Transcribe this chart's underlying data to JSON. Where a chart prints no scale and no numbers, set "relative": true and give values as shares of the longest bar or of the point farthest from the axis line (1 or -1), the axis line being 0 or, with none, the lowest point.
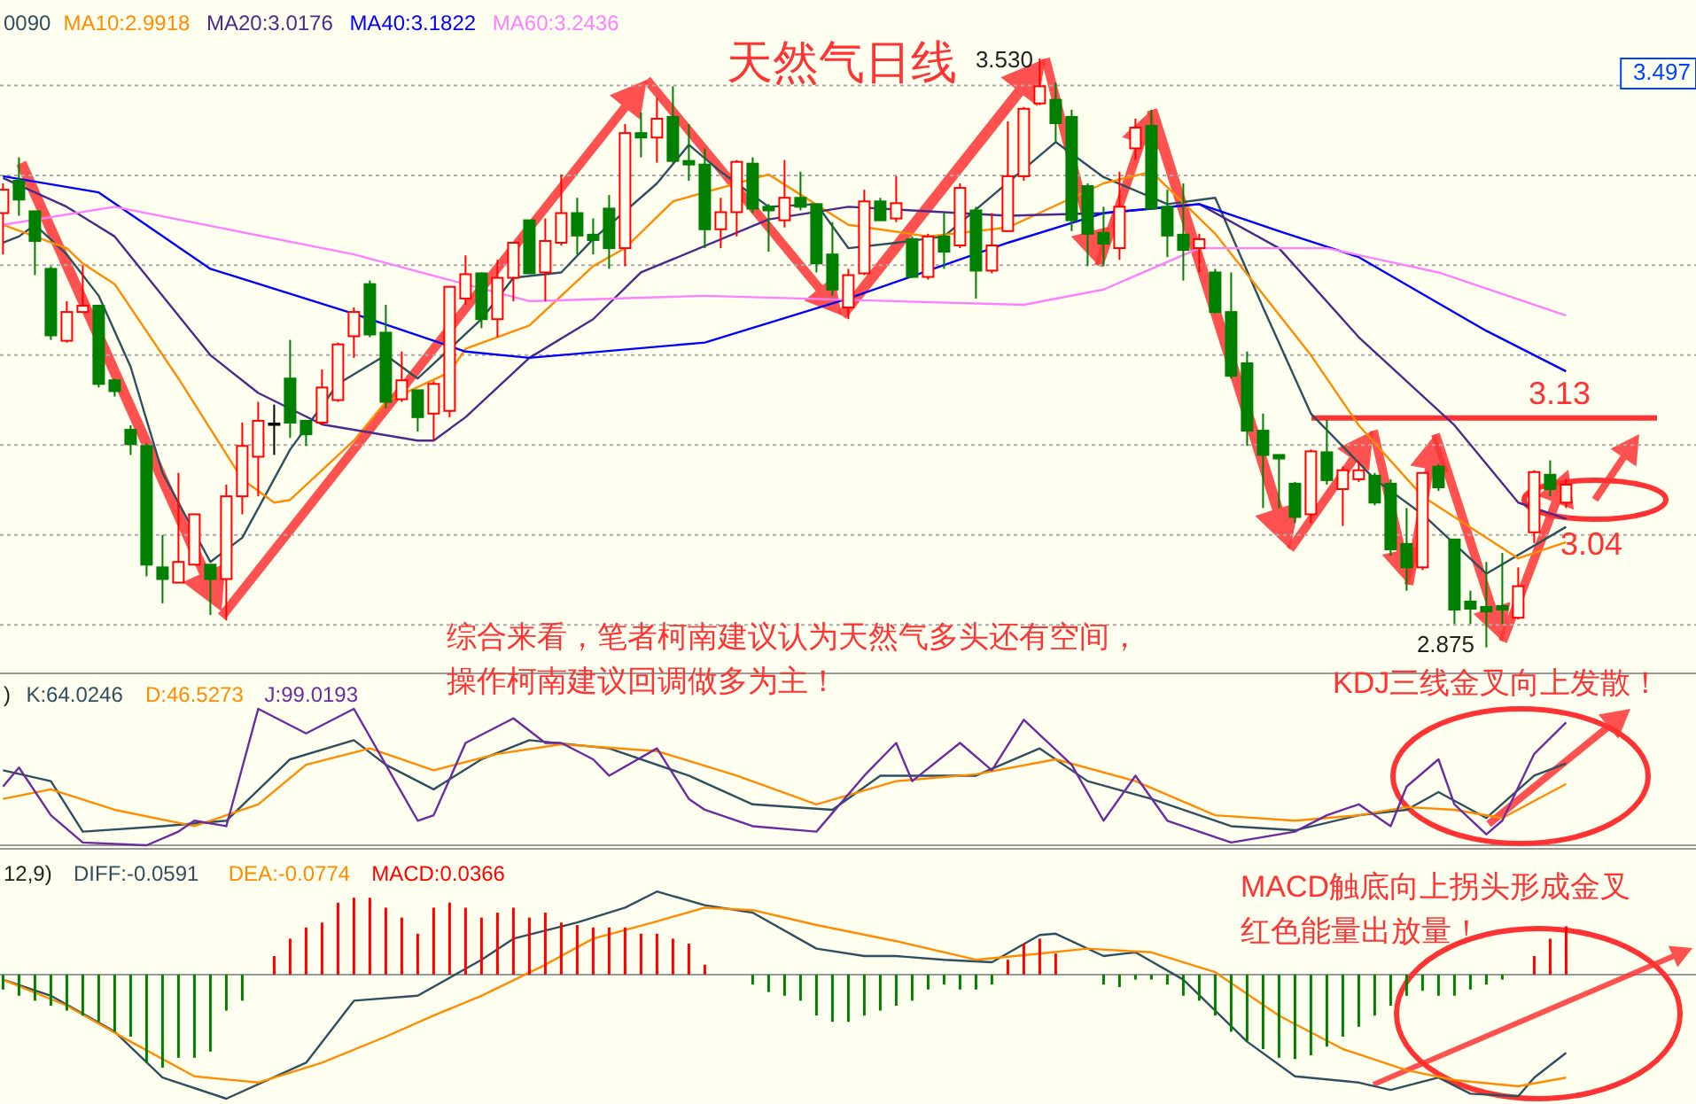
{
  "chart_data": [
    {
      "type": "candlestick",
      "title": "天然气日线",
      "categories": [
        null,
        null,
        null,
        null,
        null,
        null,
        null,
        null,
        null,
        null,
        null,
        null,
        null,
        null,
        null,
        null,
        null,
        null,
        null,
        null,
        null,
        null,
        null,
        null,
        null,
        null,
        null,
        null,
        null,
        null,
        null,
        null,
        null,
        null,
        null,
        null,
        null,
        null,
        null,
        null,
        null,
        null,
        null,
        null,
        null,
        null,
        null,
        null,
        null,
        null,
        null,
        null,
        null,
        null,
        null,
        null,
        null,
        null,
        null,
        null,
        null,
        null,
        null,
        null,
        null,
        null,
        null,
        null,
        null,
        null,
        null,
        null,
        null,
        null,
        null,
        null,
        null,
        null,
        null,
        null,
        null,
        null,
        null,
        null,
        null,
        null,
        null,
        null,
        null,
        null,
        null,
        null,
        null,
        null,
        null,
        null,
        null,
        null,
        null
      ],
      "ohlc": [
        [
          3.358,
          3.391,
          3.312,
          3.384
        ],
        [
          3.394,
          3.42,
          3.355,
          3.373
        ],
        [
          3.36,
          3.36,
          3.289,
          3.327
        ],
        [
          3.296,
          3.299,
          3.217,
          3.222
        ],
        [
          3.216,
          3.26,
          3.214,
          3.248
        ],
        [
          3.248,
          3.3,
          3.248,
          3.255
        ],
        [
          3.255,
          3.255,
          3.164,
          3.168
        ],
        [
          3.172,
          3.174,
          3.154,
          3.16
        ],
        [
          3.117,
          3.122,
          3.089,
          3.101
        ],
        [
          3.099,
          3.102,
          2.954,
          2.967
        ],
        [
          2.964,
          3.0,
          2.924,
          2.951
        ],
        [
          2.947,
          3.069,
          2.947,
          2.97
        ],
        [
          2.967,
          3.023,
          2.967,
          3.023
        ],
        [
          2.967,
          2.967,
          2.911,
          2.951
        ],
        [
          2.951,
          3.056,
          2.905,
          3.043
        ],
        [
          3.043,
          3.125,
          3.023,
          3.099
        ],
        [
          3.087,
          3.148,
          3.043,
          3.127
        ],
        [
          3.124,
          3.145,
          3.089,
          3.124
        ],
        [
          3.174,
          3.217,
          3.108,
          3.125
        ],
        [
          3.127,
          3.127,
          3.099,
          3.112
        ],
        [
          3.125,
          3.184,
          3.122,
          3.164
        ],
        [
          3.15,
          3.214,
          3.148,
          3.212
        ],
        [
          3.221,
          3.253,
          3.197,
          3.248
        ],
        [
          3.279,
          3.283,
          3.22,
          3.223
        ],
        [
          3.225,
          3.256,
          3.141,
          3.148
        ],
        [
          3.151,
          3.204,
          3.148,
          3.172
        ],
        [
          3.161,
          3.161,
          3.115,
          3.131
        ],
        [
          3.135,
          3.171,
          3.105,
          3.168
        ],
        [
          3.138,
          3.276,
          3.131,
          3.276
        ],
        [
          3.263,
          3.311,
          3.256,
          3.29
        ],
        [
          3.291,
          3.292,
          3.23,
          3.24
        ],
        [
          3.24,
          3.306,
          3.22,
          3.286
        ],
        [
          3.286,
          3.325,
          3.26,
          3.325
        ],
        [
          3.35,
          3.35,
          3.291,
          3.291
        ],
        [
          3.292,
          3.352,
          3.26,
          3.327
        ],
        [
          3.325,
          3.401,
          3.322,
          3.358
        ],
        [
          3.358,
          3.375,
          3.312,
          3.333
        ],
        [
          3.334,
          3.352,
          3.312,
          3.328
        ],
        [
          3.363,
          3.378,
          3.296,
          3.319
        ],
        [
          3.319,
          3.457,
          3.299,
          3.447
        ],
        [
          3.447,
          3.47,
          3.42,
          3.442
        ],
        [
          3.442,
          3.486,
          3.414,
          3.463
        ],
        [
          3.465,
          3.499,
          3.414,
          3.416
        ],
        [
          3.416,
          3.457,
          3.394,
          3.412
        ],
        [
          3.412,
          3.43,
          3.319,
          3.34
        ],
        [
          3.34,
          3.375,
          3.319,
          3.359
        ],
        [
          3.359,
          3.417,
          3.332,
          3.415
        ],
        [
          3.413,
          3.42,
          3.358,
          3.363
        ],
        [
          3.365,
          3.368,
          3.315,
          3.361
        ],
        [
          3.35,
          3.417,
          3.342,
          3.375
        ],
        [
          3.375,
          3.404,
          3.361,
          3.365
        ],
        [
          3.368,
          3.368,
          3.292,
          3.302
        ],
        [
          3.312,
          3.348,
          3.266,
          3.273
        ],
        [
          3.253,
          3.296,
          3.24,
          3.289
        ],
        [
          3.291,
          3.384,
          3.289,
          3.371
        ],
        [
          3.371,
          3.375,
          3.35,
          3.35
        ],
        [
          3.352,
          3.399,
          3.348,
          3.369
        ],
        [
          3.329,
          3.332,
          3.286,
          3.287
        ],
        [
          3.287,
          3.335,
          3.284,
          3.332
        ],
        [
          3.332,
          3.358,
          3.296,
          3.315
        ],
        [
          3.322,
          3.391,
          3.319,
          3.386
        ],
        [
          3.361,
          3.365,
          3.263,
          3.294
        ],
        [
          3.294,
          3.358,
          3.291,
          3.322
        ],
        [
          3.338,
          3.46,
          3.337,
          3.399
        ],
        [
          3.399,
          3.476,
          3.394,
          3.474
        ],
        [
          3.48,
          3.53,
          3.478,
          3.499
        ],
        [
          3.484,
          3.503,
          3.437,
          3.458
        ],
        [
          3.465,
          3.473,
          3.338,
          3.35
        ],
        [
          3.388,
          3.391,
          3.299,
          3.335
        ],
        [
          3.336,
          3.365,
          3.299,
          3.324
        ],
        [
          3.319,
          3.404,
          3.306,
          3.365
        ],
        [
          3.43,
          3.463,
          3.417,
          3.453
        ],
        [
          3.455,
          3.473,
          3.363,
          3.363
        ],
        [
          3.365,
          3.384,
          3.309,
          3.333
        ],
        [
          3.334,
          3.391,
          3.283,
          3.317
        ],
        [
          3.319,
          3.335,
          3.292,
          3.329
        ],
        [
          3.292,
          3.296,
          3.246,
          3.248
        ],
        [
          3.248,
          3.292,
          3.174,
          3.177
        ],
        [
          3.191,
          3.204,
          3.099,
          3.116
        ],
        [
          3.116,
          3.135,
          3.03,
          3.089
        ],
        [
          3.089,
          3.089,
          3.03,
          3.085
        ],
        [
          3.057,
          3.059,
          3.013,
          3.02
        ],
        [
          3.023,
          3.095,
          3.013,
          3.093
        ],
        [
          3.092,
          3.128,
          3.056,
          3.061
        ],
        [
          3.051,
          3.076,
          3.01,
          3.072
        ],
        [
          3.062,
          3.082,
          3.059,
          3.072
        ],
        [
          3.066,
          3.069,
          3.033,
          3.036
        ],
        [
          3.057,
          3.062,
          2.977,
          2.984
        ],
        [
          2.99,
          3.03,
          2.938,
          2.964
        ],
        [
          2.964,
          3.069,
          2.961,
          3.069
        ],
        [
          3.076,
          3.079,
          3.049,
          3.053
        ],
        [
          2.995,
          2.995,
          2.901,
          2.917
        ],
        [
          2.926,
          2.938,
          2.901,
          2.918
        ],
        [
          2.92,
          2.97,
          2.875,
          2.915
        ],
        [
          2.921,
          2.98,
          2.901,
          2.917
        ],
        [
          2.908,
          2.964,
          2.906,
          2.943
        ],
        [
          3.003,
          3.072,
          2.991,
          3.07
        ],
        [
          3.067,
          3.083,
          3.043,
          3.051
        ],
        [
          3.036,
          3.062,
          3.03,
          3.056
        ]
      ],
      "colors": [
        "#ff0000",
        "#008000",
        "#008000",
        "#008000",
        "#ff0000",
        "#ff0000",
        "#008000",
        "#008000",
        "#008000",
        "#008000",
        "#008000",
        "#ff0000",
        "#ff0000",
        "#008000",
        "#ff0000",
        "#ff0000",
        "#ff0000",
        "#000000",
        "#008000",
        "#008000",
        "#ff0000",
        "#ff0000",
        "#ff0000",
        "#008000",
        "#008000",
        "#ff0000",
        "#008000",
        "#ff0000",
        "#ff0000",
        "#ff0000",
        "#008000",
        "#ff0000",
        "#ff0000",
        "#008000",
        "#ff0000",
        "#ff0000",
        "#008000",
        "#008000",
        "#008000",
        "#ff0000",
        "#008000",
        "#ff0000",
        "#008000",
        "#008000",
        "#008000",
        "#ff0000",
        "#ff0000",
        "#008000",
        "#008000",
        "#ff0000",
        "#008000",
        "#008000",
        "#008000",
        "#ff0000",
        "#ff0000",
        "#008000",
        "#ff0000",
        "#008000",
        "#ff0000",
        "#008000",
        "#ff0000",
        "#008000",
        "#ff0000",
        "#ff0000",
        "#ff0000",
        "#ff0000",
        "#008000",
        "#008000",
        "#008000",
        "#008000",
        "#ff0000",
        "#ff0000",
        "#008000",
        "#008000",
        "#008000",
        "#ff0000",
        "#008000",
        "#008000",
        "#008000",
        "#008000",
        "#008000",
        "#008000",
        "#ff0000",
        "#008000",
        "#ff0000",
        "#ff0000",
        "#008000",
        "#008000",
        "#008000",
        "#ff0000",
        "#008000",
        "#008000",
        "#008000",
        "#008000",
        "#008000",
        "#ff0000",
        "#ff0000",
        "#008000",
        "#ff0000"
      ],
      "series": [
        {
          "name": "0090",
          "type": "line",
          "color": "#2f4f5f",
          "values": [
            3.325,
            3.332,
            3.345,
            null,
            3.312,
            null,
            3.266,
            null,
            3.187,
            null,
            3.069,
            null,
            null,
            2.97,
            null,
            2.997,
            null,
            null,
            3.095,
            null,
            null,
            3.168,
            null,
            null,
            3.2,
            null,
            3.174,
            null,
            null,
            null,
            3.24,
            null,
            3.286,
            null,
            null,
            3.292,
            null,
            3.329,
            null,
            null,
            null,
            3.391,
            null,
            3.434,
            null,
            3.404,
            null,
            null,
            3.365,
            null,
            null,
            3.368,
            null,
            3.319,
            null,
            null,
            3.325,
            null,
            null,
            3.332,
            null,
            null,
            null,
            null,
            null,
            null,
            3.437,
            null,
            null,
            3.398,
            null,
            null,
            null,
            3.368,
            null,
            null,
            3.375,
            null,
            null,
            3.253,
            null,
            null,
            3.135,
            null,
            null,
            null,
            3.062,
            null,
            null,
            3.023,
            null,
            null,
            null,
            2.957,
            null,
            null,
            null,
            null,
            3.009
          ]
        },
        {
          "name": "MA10:2.9918",
          "type": "line",
          "color": "#ff8c00",
          "values": [
            3.345,
            null,
            null,
            null,
            3.319,
            3.302,
            null,
            3.279,
            null,
            null,
            null,
            3.174,
            null,
            null,
            null,
            3.062,
            null,
            3.036,
            3.039,
            null,
            null,
            null,
            3.105,
            null,
            3.148,
            null,
            null,
            null,
            3.181,
            3.207,
            null,
            null,
            null,
            3.233,
            null,
            null,
            null,
            3.299,
            null,
            3.319,
            null,
            null,
            3.371,
            null,
            null,
            null,
            null,
            null,
            3.401,
            null,
            null,
            null,
            null,
            3.345,
            null,
            null,
            null,
            null,
            3.332,
            null,
            null,
            null,
            null,
            3.342,
            null,
            null,
            null,
            null,
            null,
            3.391,
            null,
            null,
            3.404,
            null,
            null,
            null,
            3.335,
            null,
            null,
            null,
            null,
            null,
            3.2,
            null,
            null,
            3.122,
            null,
            null,
            null,
            3.043,
            null,
            null,
            null,
            null,
            null,
            2.974,
            null,
            null,
            2.992
          ]
        },
        {
          "name": "MA20:3.0176",
          "type": "line",
          "color": "#4b2a8a",
          "values": [
            3.397,
            null,
            null,
            null,
            3.365,
            null,
            null,
            3.332,
            null,
            null,
            null,
            null,
            null,
            3.2,
            null,
            null,
            3.158,
            null,
            null,
            null,
            3.123,
            null,
            null,
            null,
            null,
            null,
            3.105,
            3.105,
            null,
            3.131,
            null,
            null,
            null,
            3.197,
            null,
            null,
            null,
            3.24,
            null,
            null,
            3.292,
            null,
            null,
            null,
            null,
            null,
            null,
            null,
            3.351,
            null,
            null,
            null,
            null,
            3.365,
            null,
            null,
            null,
            null,
            null,
            null,
            null,
            null,
            null,
            3.355,
            null,
            null,
            null,
            null,
            null,
            3.358,
            null,
            null,
            null,
            null,
            null,
            3.368,
            null,
            null,
            null,
            null,
            3.319,
            null,
            null,
            null,
            null,
            3.22,
            null,
            null,
            null,
            null,
            null,
            3.122,
            null,
            null,
            null,
            3.036,
            null,
            null,
            3.018
          ]
        },
        {
          "name": "MA40:3.1822",
          "type": "line",
          "color": "#0000ff",
          "values": [
            3.399,
            null,
            null,
            null,
            null,
            null,
            3.381,
            null,
            null,
            null,
            null,
            null,
            null,
            3.296,
            null,
            null,
            null,
            null,
            null,
            null,
            null,
            null,
            3.246,
            null,
            null,
            null,
            null,
            null,
            null,
            3.204,
            null,
            null,
            null,
            3.197,
            null,
            null,
            null,
            null,
            null,
            null,
            null,
            null,
            null,
            null,
            3.214,
            null,
            null,
            null,
            null,
            null,
            null,
            null,
            null,
            3.263,
            null,
            null,
            null,
            null,
            null,
            null,
            null,
            null,
            null,
            3.325,
            null,
            null,
            null,
            null,
            null,
            3.358,
            null,
            null,
            null,
            null,
            null,
            3.368,
            null,
            null,
            null,
            null,
            3.338,
            null,
            null,
            null,
            null,
            3.309,
            null,
            null,
            null,
            null,
            null,
            null,
            null,
            3.227,
            null,
            null,
            null,
            null,
            3.182
          ]
        },
        {
          "name": "MA60:3.2436",
          "type": "line",
          "color": "#ff80ff",
          "values": [
            3.345,
            null,
            null,
            null,
            null,
            null,
            null,
            3.365,
            null,
            null,
            null,
            null,
            null,
            null,
            null,
            null,
            null,
            null,
            null,
            null,
            null,
            null,
            3.312,
            null,
            null,
            null,
            null,
            null,
            null,
            null,
            null,
            null,
            null,
            3.26,
            null,
            null,
            null,
            null,
            null,
            null,
            null,
            null,
            null,
            null,
            3.266,
            null,
            null,
            null,
            null,
            null,
            null,
            null,
            null,
            null,
            null,
            null,
            null,
            null,
            null,
            null,
            null,
            null,
            null,
            null,
            3.256,
            null,
            null,
            null,
            null,
            3.273,
            null,
            null,
            null,
            null,
            null,
            3.319,
            null,
            null,
            null,
            null,
            null,
            null,
            null,
            3.319,
            null,
            null,
            null,
            null,
            null,
            null,
            3.292,
            null,
            null,
            null,
            null,
            null,
            null,
            null,
            3.244
          ]
        }
      ],
      "ylim": [
        2.85,
        3.595
      ],
      "yticks": [
        {
          "value": 2.9,
          "label": null
        },
        {
          "value": 3.0,
          "label": null
        },
        {
          "value": 3.1,
          "label": null
        },
        {
          "value": 3.2,
          "label": null
        },
        {
          "value": 3.3,
          "label": null
        },
        {
          "value": 3.4,
          "label": null
        },
        {
          "value": 3.5,
          "label": null
        }
      ],
      "grid": "y",
      "legend": "top left",
      "ref_lines": [
        {
          "axis": "y",
          "value": 3.13,
          "label": "3.13",
          "color": "#ff3333"
        }
      ],
      "annotations": [
        "综合来看，笔者柯南建议认为天然气多头还有空间，",
        "操作柯南建议回调做多为主！",
        "3.04",
        "3.530",
        "2.875",
        "3.497"
      ]
    },
    {
      "type": "line",
      "relative": true,
      "categories": [
        null,
        null,
        null,
        null,
        null,
        null,
        null,
        null,
        null,
        null,
        null,
        null,
        null,
        null,
        null,
        null,
        null,
        null,
        null,
        null,
        null,
        null,
        null,
        null,
        null,
        null,
        null,
        null,
        null,
        null,
        null,
        null,
        null,
        null,
        null,
        null,
        null,
        null,
        null,
        null,
        null,
        null,
        null,
        null,
        null,
        null,
        null,
        null,
        null,
        null,
        null,
        null,
        null,
        null,
        null,
        null,
        null,
        null,
        null,
        null,
        null,
        null,
        null,
        null,
        null,
        null,
        null,
        null,
        null,
        null,
        null,
        null,
        null,
        null,
        null,
        null,
        null,
        null,
        null,
        null,
        null,
        null,
        null,
        null,
        null,
        null,
        null,
        null,
        null,
        null,
        null,
        null,
        null,
        null,
        null,
        null,
        null,
        null,
        null
      ],
      "legend_title": ")",
      "series": [
        {
          "name": "K:64.0246",
          "color": "#2f4f5f",
          "values": [
            0.55,
            null,
            null,
            0.47,
            null,
            0.1,
            null,
            null,
            null,
            null,
            0.14,
            null,
            null,
            null,
            0.18,
            null,
            null,
            null,
            0.63,
            null,
            null,
            null,
            0.77,
            null,
            0.59,
            null,
            null,
            0.41,
            null,
            null,
            0.63,
            null,
            null,
            0.77,
            null,
            null,
            null,
            null,
            0.71,
            null,
            null,
            null,
            null,
            0.51,
            null,
            null,
            null,
            0.3,
            null,
            null,
            null,
            null,
            0.26,
            null,
            null,
            0.51,
            null,
            null,
            0.51,
            null,
            null,
            0.51,
            null,
            null,
            null,
            0.71,
            null,
            null,
            0.47,
            null,
            null,
            null,
            0.34,
            null,
            null,
            null,
            null,
            0.14,
            null,
            null,
            null,
            0.11,
            null,
            null,
            null,
            0.22,
            null,
            null,
            0.26,
            null,
            0.39,
            null,
            null,
            0.2,
            null,
            null,
            0.51,
            null,
            0.6
          ]
        },
        {
          "name": "D:46.5273",
          "color": "#ff8c00",
          "values": [
            0.34,
            null,
            null,
            0.41,
            null,
            null,
            null,
            0.26,
            null,
            null,
            null,
            null,
            0.14,
            null,
            null,
            null,
            0.3,
            null,
            null,
            0.59,
            null,
            null,
            null,
            0.71,
            null,
            null,
            null,
            0.55,
            null,
            null,
            null,
            0.67,
            null,
            null,
            null,
            0.74,
            null,
            null,
            null,
            null,
            null,
            0.69,
            null,
            null,
            null,
            null,
            0.51,
            null,
            null,
            null,
            null,
            0.3,
            null,
            null,
            null,
            null,
            0.47,
            null,
            null,
            null,
            null,
            0.52,
            null,
            null,
            null,
            null,
            0.63,
            null,
            null,
            null,
            null,
            0.47,
            null,
            null,
            null,
            null,
            0.22,
            null,
            null,
            null,
            null,
            0.18,
            null,
            null,
            null,
            0.22,
            null,
            null,
            0.28,
            null,
            null,
            0.26,
            null,
            null,
            0.2,
            null,
            null,
            null,
            0.45
          ]
        },
        {
          "name": "J:99.0193",
          "color": "#6a2ca0",
          "values": [
            0.43,
            0.57,
            null,
            0.22,
            null,
            0.02,
            null,
            null,
            null,
            0.0,
            null,
            0.1,
            0.18,
            null,
            0.14,
            null,
            1.0,
            null,
            null,
            0.82,
            null,
            null,
            1.0,
            null,
            0.59,
            null,
            0.18,
            0.22,
            null,
            0.75,
            null,
            null,
            0.93,
            null,
            0.75,
            0.75,
            null,
            0.63,
            0.51,
            null,
            null,
            0.71,
            null,
            0.34,
            0.26,
            null,
            null,
            0.14,
            null,
            null,
            null,
            0.1,
            null,
            null,
            0.51,
            null,
            0.75,
            0.47,
            null,
            null,
            0.75,
            null,
            0.55,
            null,
            0.92,
            null,
            null,
            0.59,
            null,
            0.18,
            null,
            0.51,
            null,
            0.18,
            null,
            null,
            null,
            0.02,
            null,
            null,
            null,
            0.1,
            null,
            0.22,
            null,
            0.3,
            null,
            0.14,
            0.43,
            null,
            0.63,
            0.3,
            null,
            0.08,
            0.18,
            null,
            0.67,
            null,
            0.9
          ]
        }
      ],
      "annotations": [
        "KDJ三线金叉向上发散！"
      ]
    },
    {
      "type": "line",
      "relative": true,
      "categories": [
        null,
        null,
        null,
        null,
        null,
        null,
        null,
        null,
        null,
        null,
        null,
        null,
        null,
        null,
        null,
        null,
        null,
        null,
        null,
        null,
        null,
        null,
        null,
        null,
        null,
        null,
        null,
        null,
        null,
        null,
        null,
        null,
        null,
        null,
        null,
        null,
        null,
        null,
        null,
        null,
        null,
        null,
        null,
        null,
        null,
        null,
        null,
        null,
        null,
        null,
        null,
        null,
        null,
        null,
        null,
        null,
        null,
        null,
        null,
        null,
        null,
        null,
        null,
        null,
        null,
        null,
        null,
        null,
        null,
        null,
        null,
        null,
        null,
        null,
        null,
        null,
        null,
        null,
        null,
        null,
        null,
        null,
        null,
        null,
        null,
        null,
        null,
        null,
        null,
        null,
        null,
        null,
        null,
        null,
        null,
        null,
        null,
        null,
        null
      ],
      "legend_title": "12,9)",
      "series": [
        {
          "name": "DIFF:-0.0591",
          "color": "#2f4f5f",
          "values": [
            -0.04,
            null,
            null,
            -0.17,
            null,
            null,
            null,
            -0.46,
            null,
            null,
            -0.83,
            null,
            null,
            null,
            -1,
            null,
            null,
            null,
            null,
            -0.71,
            null,
            null,
            -0.21,
            null,
            null,
            null,
            -0.17,
            null,
            null,
            null,
            0.12,
            null,
            0.29,
            null,
            null,
            null,
            0.42,
            null,
            null,
            0.54,
            null,
            0.67,
            null,
            null,
            0.56,
            null,
            null,
            0.5,
            null,
            null,
            null,
            0.21,
            null,
            null,
            0.15,
            null,
            0.15,
            null,
            null,
            0.12,
            null,
            null,
            0.1,
            null,
            null,
            0.32,
            0.33,
            null,
            null,
            0.15,
            null,
            0.18,
            null,
            null,
            -0.04,
            null,
            null,
            null,
            -0.54,
            null,
            null,
            -0.82,
            null,
            null,
            null,
            -0.87,
            null,
            -0.93,
            null,
            null,
            -0.83,
            null,
            -0.96,
            null,
            null,
            -0.98,
            -0.83,
            null,
            -0.63
          ]
        },
        {
          "name": "DEA:-0.0774",
          "color": "#ff8c00",
          "values": [
            -0.04,
            null,
            null,
            null,
            -0.25,
            null,
            null,
            null,
            -0.54,
            null,
            null,
            null,
            -0.82,
            null,
            null,
            null,
            -0.87,
            null,
            null,
            null,
            -0.71,
            null,
            null,
            null,
            -0.5,
            null,
            null,
            -0.33,
            null,
            null,
            -0.17,
            null,
            null,
            null,
            0.08,
            null,
            null,
            0.29,
            null,
            null,
            null,
            0.43,
            null,
            null,
            0.54,
            null,
            null,
            0.52,
            null,
            null,
            null,
            0.4,
            null,
            null,
            null,
            null,
            0.27,
            null,
            null,
            null,
            null,
            0.12,
            null,
            null,
            null,
            0.17,
            null,
            null,
            0.21,
            null,
            null,
            null,
            0.18,
            null,
            null,
            null,
            0.02,
            null,
            null,
            null,
            -0.33,
            null,
            null,
            null,
            -0.6,
            null,
            null,
            null,
            -0.77,
            null,
            null,
            -0.85,
            null,
            null,
            null,
            -0.9,
            null,
            null,
            -0.83
          ]
        },
        {
          "name": "MACD:0.0366",
          "type": "bar",
          "values": [
            -0.12,
            -0.17,
            -0.21,
            -0.25,
            -0.29,
            -0.33,
            -0.38,
            -0.46,
            -0.5,
            -0.71,
            -0.75,
            -0.67,
            -0.67,
            -0.62,
            -0.29,
            -0.21,
            null,
            0.15,
            0.29,
            0.38,
            0.42,
            0.58,
            0.62,
            0.62,
            0.54,
            0.46,
            0.33,
            0.54,
            0.58,
            0.54,
            0.46,
            0.5,
            0.54,
            0.46,
            0.5,
            0.42,
            0.4,
            0.38,
            0.38,
            0.38,
            0.33,
            0.33,
            0.29,
            0.25,
            0.08,
            null,
            null,
            -0.08,
            -0.14,
            -0.17,
            -0.21,
            -0.33,
            -0.38,
            -0.38,
            -0.33,
            -0.29,
            -0.25,
            -0.21,
            -0.12,
            -0.08,
            -0.12,
            -0.12,
            -0.08,
            0.12,
            0.25,
            0.29,
            0.17,
            null,
            null,
            -0.08,
            -0.1,
            -0.04,
            -0.04,
            -0.08,
            -0.17,
            -0.21,
            -0.33,
            -0.46,
            -0.54,
            -0.6,
            -0.67,
            -0.68,
            -0.65,
            -0.58,
            -0.5,
            -0.42,
            -0.33,
            -0.25,
            -0.17,
            -0.13,
            -0.17,
            -0.17,
            -0.12,
            -0.08,
            -0.04,
            null,
            0.15,
            0.29,
            0.39
          ],
          "colors": [
            "#008000",
            "#008000",
            "#008000",
            "#008000",
            "#008000",
            "#008000",
            "#008000",
            "#008000",
            "#008000",
            "#008000",
            "#008000",
            "#008000",
            "#008000",
            "#008000",
            "#008000",
            "#008000",
            "#008000",
            "#ff0000",
            "#ff0000",
            "#ff0000",
            "#ff0000",
            "#ff0000",
            "#ff0000",
            "#ff0000",
            "#ff0000",
            "#ff0000",
            "#ff0000",
            "#ff0000",
            "#ff0000",
            "#ff0000",
            "#ff0000",
            "#ff0000",
            "#ff0000",
            "#ff0000",
            "#ff0000",
            "#ff0000",
            "#ff0000",
            "#ff0000",
            "#ff0000",
            "#ff0000",
            "#ff0000",
            "#ff0000",
            "#ff0000",
            "#ff0000",
            "#ff0000",
            "#ff0000",
            "#008000",
            "#008000",
            "#008000",
            "#008000",
            "#008000",
            "#008000",
            "#008000",
            "#008000",
            "#008000",
            "#008000",
            "#008000",
            "#008000",
            "#008000",
            "#008000",
            "#008000",
            "#008000",
            "#008000",
            "#ff0000",
            "#ff0000",
            "#ff0000",
            "#ff0000",
            "#ff0000",
            "#008000",
            "#008000",
            "#008000",
            "#008000",
            "#008000",
            "#008000",
            "#008000",
            "#008000",
            "#008000",
            "#008000",
            "#008000",
            "#008000",
            "#008000",
            "#008000",
            "#008000",
            "#008000",
            "#008000",
            "#008000",
            "#008000",
            "#008000",
            "#008000",
            "#008000",
            "#008000",
            "#008000",
            "#008000",
            "#008000",
            "#008000",
            "#ff0000",
            "#ff0000",
            "#ff0000",
            "#ff0000"
          ]
        }
      ],
      "annotations": [
        "MACD触底向上拐头形成金叉",
        "红色能量出放量！"
      ]
    }
  ]
}
